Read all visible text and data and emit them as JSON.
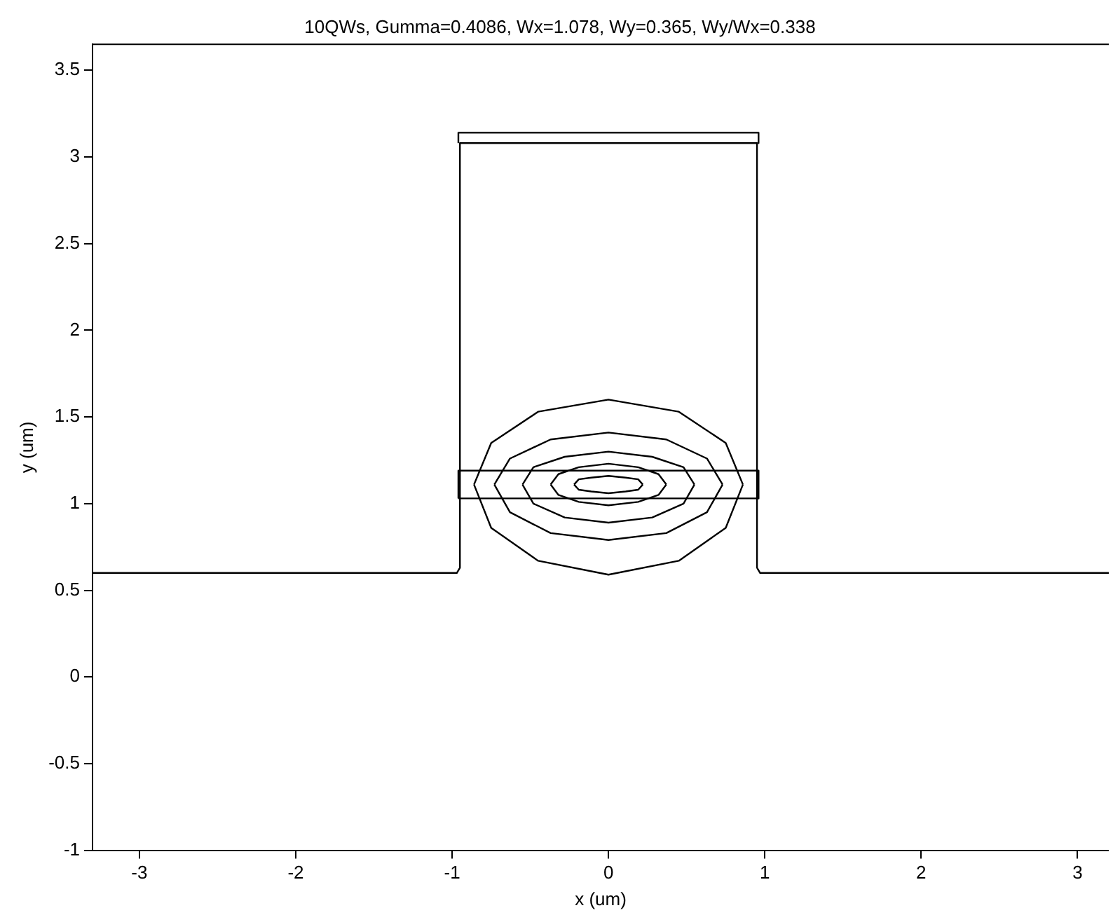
{
  "chart_data": {
    "type": "line",
    "title": "10QWs, Gumma=0.4086, Wx=1.078, Wy=0.365, Wy/Wx=0.338",
    "xlabel": "x (um)",
    "ylabel": "y (um)",
    "xlim": [
      -3.3,
      3.2
    ],
    "ylim": [
      -1,
      3.65
    ],
    "xticks": [
      -3,
      -2,
      -1,
      0,
      1,
      2,
      3
    ],
    "yticks": [
      -1,
      -0.5,
      0,
      0.5,
      1,
      1.5,
      2,
      2.5,
      3,
      3.5
    ],
    "grid": false,
    "legend": false,
    "marker": "none",
    "line_style": "solid",
    "series": [
      {
        "color": "#000000",
        "x": [
          -3.3,
          -0.97,
          -0.95,
          -0.95,
          0.95,
          0.95,
          0.97,
          3.2
        ],
        "values": [
          0.6,
          0.6,
          0.63,
          3.08,
          3.08,
          0.63,
          0.6,
          0.6
        ]
      },
      {
        "color": "#000000",
        "x": [
          -0.96,
          -0.96,
          0.96,
          0.96
        ],
        "values": [
          3.08,
          3.14,
          3.14,
          3.08
        ]
      },
      {
        "color": "#000000",
        "x": [
          -0.96,
          -0.96,
          0.96,
          0.96
        ],
        "values": [
          1.03,
          1.19,
          1.19,
          1.03
        ]
      },
      {
        "color": "#000000",
        "x": [
          -0.96,
          0.96
        ],
        "values": [
          1.03,
          1.03
        ]
      },
      {
        "color": "#000000",
        "x": [
          -0.22,
          -0.19,
          -0.11,
          0,
          0.11,
          0.19,
          0.22
        ],
        "values": [
          1.11,
          1.14,
          1.15,
          1.16,
          1.15,
          1.14,
          1.11
        ]
      },
      {
        "color": "#000000",
        "x": [
          -0.22,
          -0.19,
          -0.11,
          0,
          0.11,
          0.19,
          0.22
        ],
        "values": [
          1.11,
          1.08,
          1.07,
          1.06,
          1.07,
          1.08,
          1.11
        ]
      },
      {
        "color": "#000000",
        "x": [
          -0.37,
          -0.32,
          -0.19,
          0,
          0.19,
          0.32,
          0.37
        ],
        "values": [
          1.11,
          1.17,
          1.21,
          1.23,
          1.21,
          1.17,
          1.11
        ]
      },
      {
        "color": "#000000",
        "x": [
          -0.37,
          -0.32,
          -0.19,
          0,
          0.19,
          0.32,
          0.37
        ],
        "values": [
          1.11,
          1.05,
          1.01,
          0.99,
          1.01,
          1.05,
          1.11
        ]
      },
      {
        "color": "#000000",
        "x": [
          -0.55,
          -0.48,
          -0.28,
          0,
          0.28,
          0.48,
          0.55
        ],
        "values": [
          1.11,
          1.21,
          1.27,
          1.3,
          1.27,
          1.21,
          1.11
        ]
      },
      {
        "color": "#000000",
        "x": [
          -0.55,
          -0.48,
          -0.28,
          0,
          0.28,
          0.48,
          0.55
        ],
        "values": [
          1.11,
          1.0,
          0.92,
          0.89,
          0.92,
          1.0,
          1.11
        ]
      },
      {
        "color": "#000000",
        "x": [
          -0.73,
          -0.63,
          -0.37,
          0,
          0.37,
          0.63,
          0.73
        ],
        "values": [
          1.11,
          1.26,
          1.37,
          1.41,
          1.37,
          1.26,
          1.11
        ]
      },
      {
        "color": "#000000",
        "x": [
          -0.73,
          -0.63,
          -0.37,
          0,
          0.37,
          0.63,
          0.73
        ],
        "values": [
          1.11,
          0.95,
          0.83,
          0.79,
          0.83,
          0.95,
          1.11
        ]
      },
      {
        "color": "#000000",
        "x": [
          -0.86,
          -0.75,
          -0.45,
          0,
          0.45,
          0.75,
          0.86
        ],
        "values": [
          1.11,
          1.35,
          1.53,
          1.6,
          1.53,
          1.35,
          1.11
        ]
      },
      {
        "color": "#000000",
        "x": [
          -0.86,
          -0.75,
          -0.45,
          0,
          0.45,
          0.75,
          0.86
        ],
        "values": [
          1.11,
          0.86,
          0.67,
          0.59,
          0.67,
          0.86,
          1.11
        ]
      }
    ]
  }
}
